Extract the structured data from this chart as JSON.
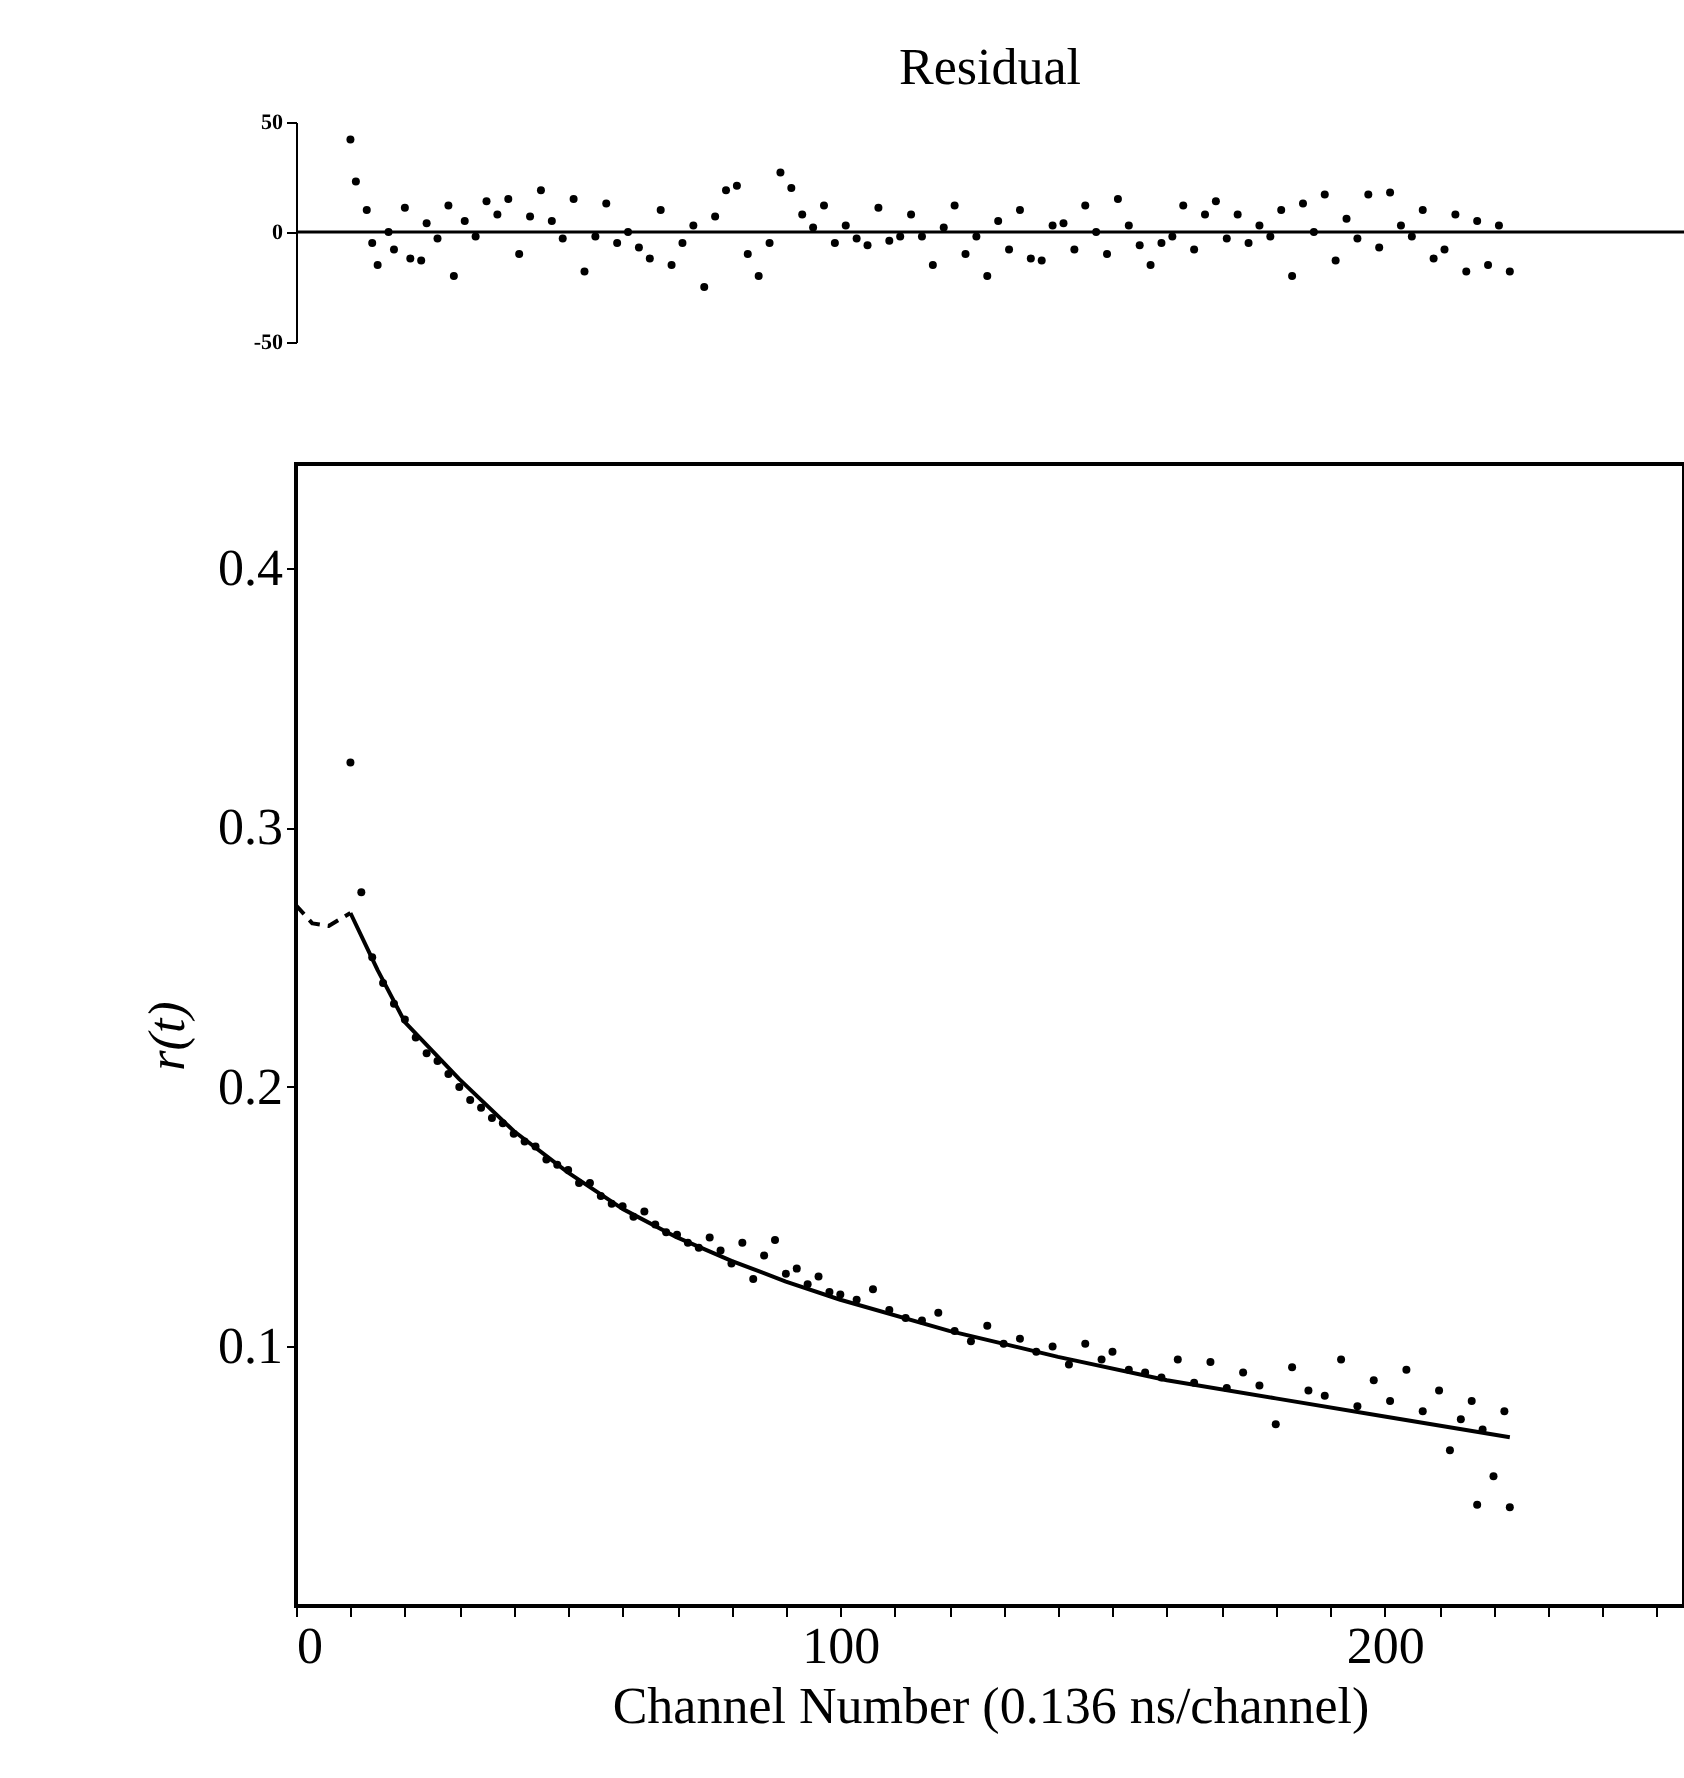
{
  "chart_data": [
    {
      "type": "scatter",
      "title": "Residual",
      "xlim": [
        0,
        255
      ],
      "ylim": [
        -50,
        50
      ],
      "yticks": [
        -50,
        0,
        50
      ],
      "tick_labels": "y",
      "marker": "circle",
      "ref_lines": [
        {
          "axis": "y",
          "value": 0,
          "color": "#000000"
        }
      ],
      "series": [
        {
          "color": "#000000",
          "x": [
            10,
            11,
            13,
            14,
            15,
            17,
            18,
            20,
            21,
            23,
            24,
            26,
            28,
            29,
            31,
            33,
            35,
            37,
            39,
            41,
            43,
            45,
            47,
            49,
            51,
            53,
            55,
            57,
            59,
            61,
            63,
            65,
            67,
            69,
            71,
            73,
            75,
            77,
            79,
            81,
            83,
            85,
            87,
            89,
            91,
            93,
            95,
            97,
            99,
            101,
            103,
            105,
            107,
            109,
            111,
            113,
            115,
            117,
            119,
            121,
            123,
            125,
            127,
            129,
            131,
            133,
            135,
            137,
            139,
            141,
            143,
            145,
            147,
            149,
            151,
            153,
            155,
            157,
            159,
            161,
            163,
            165,
            167,
            169,
            171,
            173,
            175,
            177,
            179,
            181,
            183,
            185,
            187,
            189,
            191,
            193,
            195,
            197,
            199,
            201,
            203,
            205,
            207,
            209,
            211,
            213,
            215,
            217,
            219,
            221,
            223
          ],
          "values": [
            42,
            23,
            10,
            -5,
            -15,
            0,
            -8,
            11,
            -12,
            -13,
            4,
            -3,
            12,
            -20,
            5,
            -2,
            14,
            8,
            15,
            -10,
            7,
            19,
            5,
            -3,
            15,
            -18,
            -2,
            13,
            -5,
            0,
            -7,
            -12,
            10,
            -15,
            -5,
            3,
            -25,
            7,
            19,
            21,
            -10,
            -20,
            -5,
            27,
            20,
            8,
            2,
            12,
            -5,
            3,
            -3,
            -6,
            11,
            -4,
            -2,
            8,
            -2,
            -15,
            2,
            12,
            -10,
            -2,
            -20,
            5,
            -8,
            10,
            -12,
            -13,
            3,
            4,
            -8,
            12,
            0,
            -10,
            15,
            3,
            -6,
            -15,
            -5,
            -2,
            12,
            -8,
            8,
            14,
            -3,
            8,
            -5,
            3,
            -2,
            10,
            -20,
            13,
            0,
            17,
            -13,
            6,
            -3,
            17,
            -7,
            18,
            3,
            -2,
            10,
            -12,
            -8,
            8,
            -18,
            5,
            -15,
            3,
            -18
          ]
        }
      ]
    },
    {
      "type": "scatter",
      "xlabel": "Channel Number (0.136 ns/channel)",
      "ylabel": "r(t)",
      "xlim": [
        0,
        255
      ],
      "ylim": [
        0,
        0.44
      ],
      "xticks": [
        0,
        {
          "value": 10,
          "label": null
        },
        {
          "value": 20,
          "label": null
        },
        {
          "value": 30,
          "label": null
        },
        {
          "value": 40,
          "label": null
        },
        {
          "value": 50,
          "label": null
        },
        {
          "value": 60,
          "label": null
        },
        {
          "value": 70,
          "label": null
        },
        {
          "value": 80,
          "label": null
        },
        {
          "value": 90,
          "label": null
        },
        100,
        {
          "value": 110,
          "label": null
        },
        {
          "value": 120,
          "label": null
        },
        {
          "value": 130,
          "label": null
        },
        {
          "value": 140,
          "label": null
        },
        {
          "value": 150,
          "label": null
        },
        {
          "value": 160,
          "label": null
        },
        {
          "value": 170,
          "label": null
        },
        {
          "value": 180,
          "label": null
        },
        {
          "value": 190,
          "label": null
        },
        200,
        {
          "value": 210,
          "label": null
        },
        {
          "value": 220,
          "label": null
        },
        {
          "value": 230,
          "label": null
        },
        {
          "value": 240,
          "label": null
        },
        {
          "value": 250,
          "label": null
        }
      ],
      "yticks": [
        0.1,
        0.2,
        0.3,
        0.4
      ],
      "series": [
        {
          "marker": "circle",
          "color": "#000000",
          "x": [
            10,
            12,
            14,
            16,
            18,
            20,
            22,
            24,
            26,
            28,
            30,
            32,
            34,
            36,
            38,
            40,
            42,
            44,
            46,
            48,
            50,
            52,
            54,
            56,
            58,
            60,
            62,
            64,
            66,
            68,
            70,
            72,
            74,
            76,
            78,
            80,
            82,
            84,
            86,
            88,
            90,
            92,
            94,
            96,
            98,
            100,
            103,
            106,
            109,
            112,
            115,
            118,
            121,
            124,
            127,
            130,
            133,
            136,
            139,
            142,
            145,
            148,
            150,
            153,
            156,
            159,
            162,
            165,
            168,
            171,
            174,
            177,
            180,
            183,
            186,
            189,
            192,
            195,
            198,
            201,
            204,
            207,
            210,
            212,
            214,
            216,
            217,
            218,
            220,
            222,
            223
          ],
          "values": [
            0.325,
            0.275,
            0.25,
            0.24,
            0.232,
            0.226,
            0.219,
            0.213,
            0.21,
            0.205,
            0.2,
            0.195,
            0.192,
            0.188,
            0.186,
            0.182,
            0.179,
            0.177,
            0.172,
            0.17,
            0.168,
            0.163,
            0.163,
            0.158,
            0.155,
            0.154,
            0.15,
            0.152,
            0.147,
            0.144,
            0.143,
            0.14,
            0.138,
            0.142,
            0.137,
            0.132,
            0.14,
            0.126,
            0.135,
            0.141,
            0.128,
            0.13,
            0.124,
            0.127,
            0.121,
            0.12,
            0.118,
            0.122,
            0.114,
            0.111,
            0.11,
            0.113,
            0.106,
            0.102,
            0.108,
            0.101,
            0.103,
            0.098,
            0.1,
            0.093,
            0.101,
            0.095,
            0.098,
            0.091,
            0.09,
            0.088,
            0.095,
            0.086,
            0.094,
            0.084,
            0.09,
            0.085,
            0.07,
            0.092,
            0.083,
            0.081,
            0.095,
            0.077,
            0.087,
            0.079,
            0.091,
            0.075,
            0.083,
            0.06,
            0.072,
            0.079,
            0.039,
            0.068,
            0.05,
            0.075,
            0.038
          ]
        },
        {
          "type": "line",
          "marker": "none",
          "line_style": "dashed",
          "color": "#000000",
          "x": [
            0,
            3,
            6,
            10
          ],
          "values": [
            0.27,
            0.263,
            0.262,
            0.267
          ]
        },
        {
          "type": "line",
          "marker": "none",
          "line_style": "solid",
          "color": "#000000",
          "x": [
            10,
            15,
            20,
            30,
            40,
            50,
            60,
            70,
            80,
            90,
            100,
            120,
            140,
            160,
            180,
            200,
            223
          ],
          "values": [
            0.267,
            0.245,
            0.225,
            0.203,
            0.183,
            0.167,
            0.153,
            0.142,
            0.133,
            0.125,
            0.118,
            0.106,
            0.096,
            0.087,
            0.08,
            0.073,
            0.065
          ]
        }
      ]
    }
  ]
}
